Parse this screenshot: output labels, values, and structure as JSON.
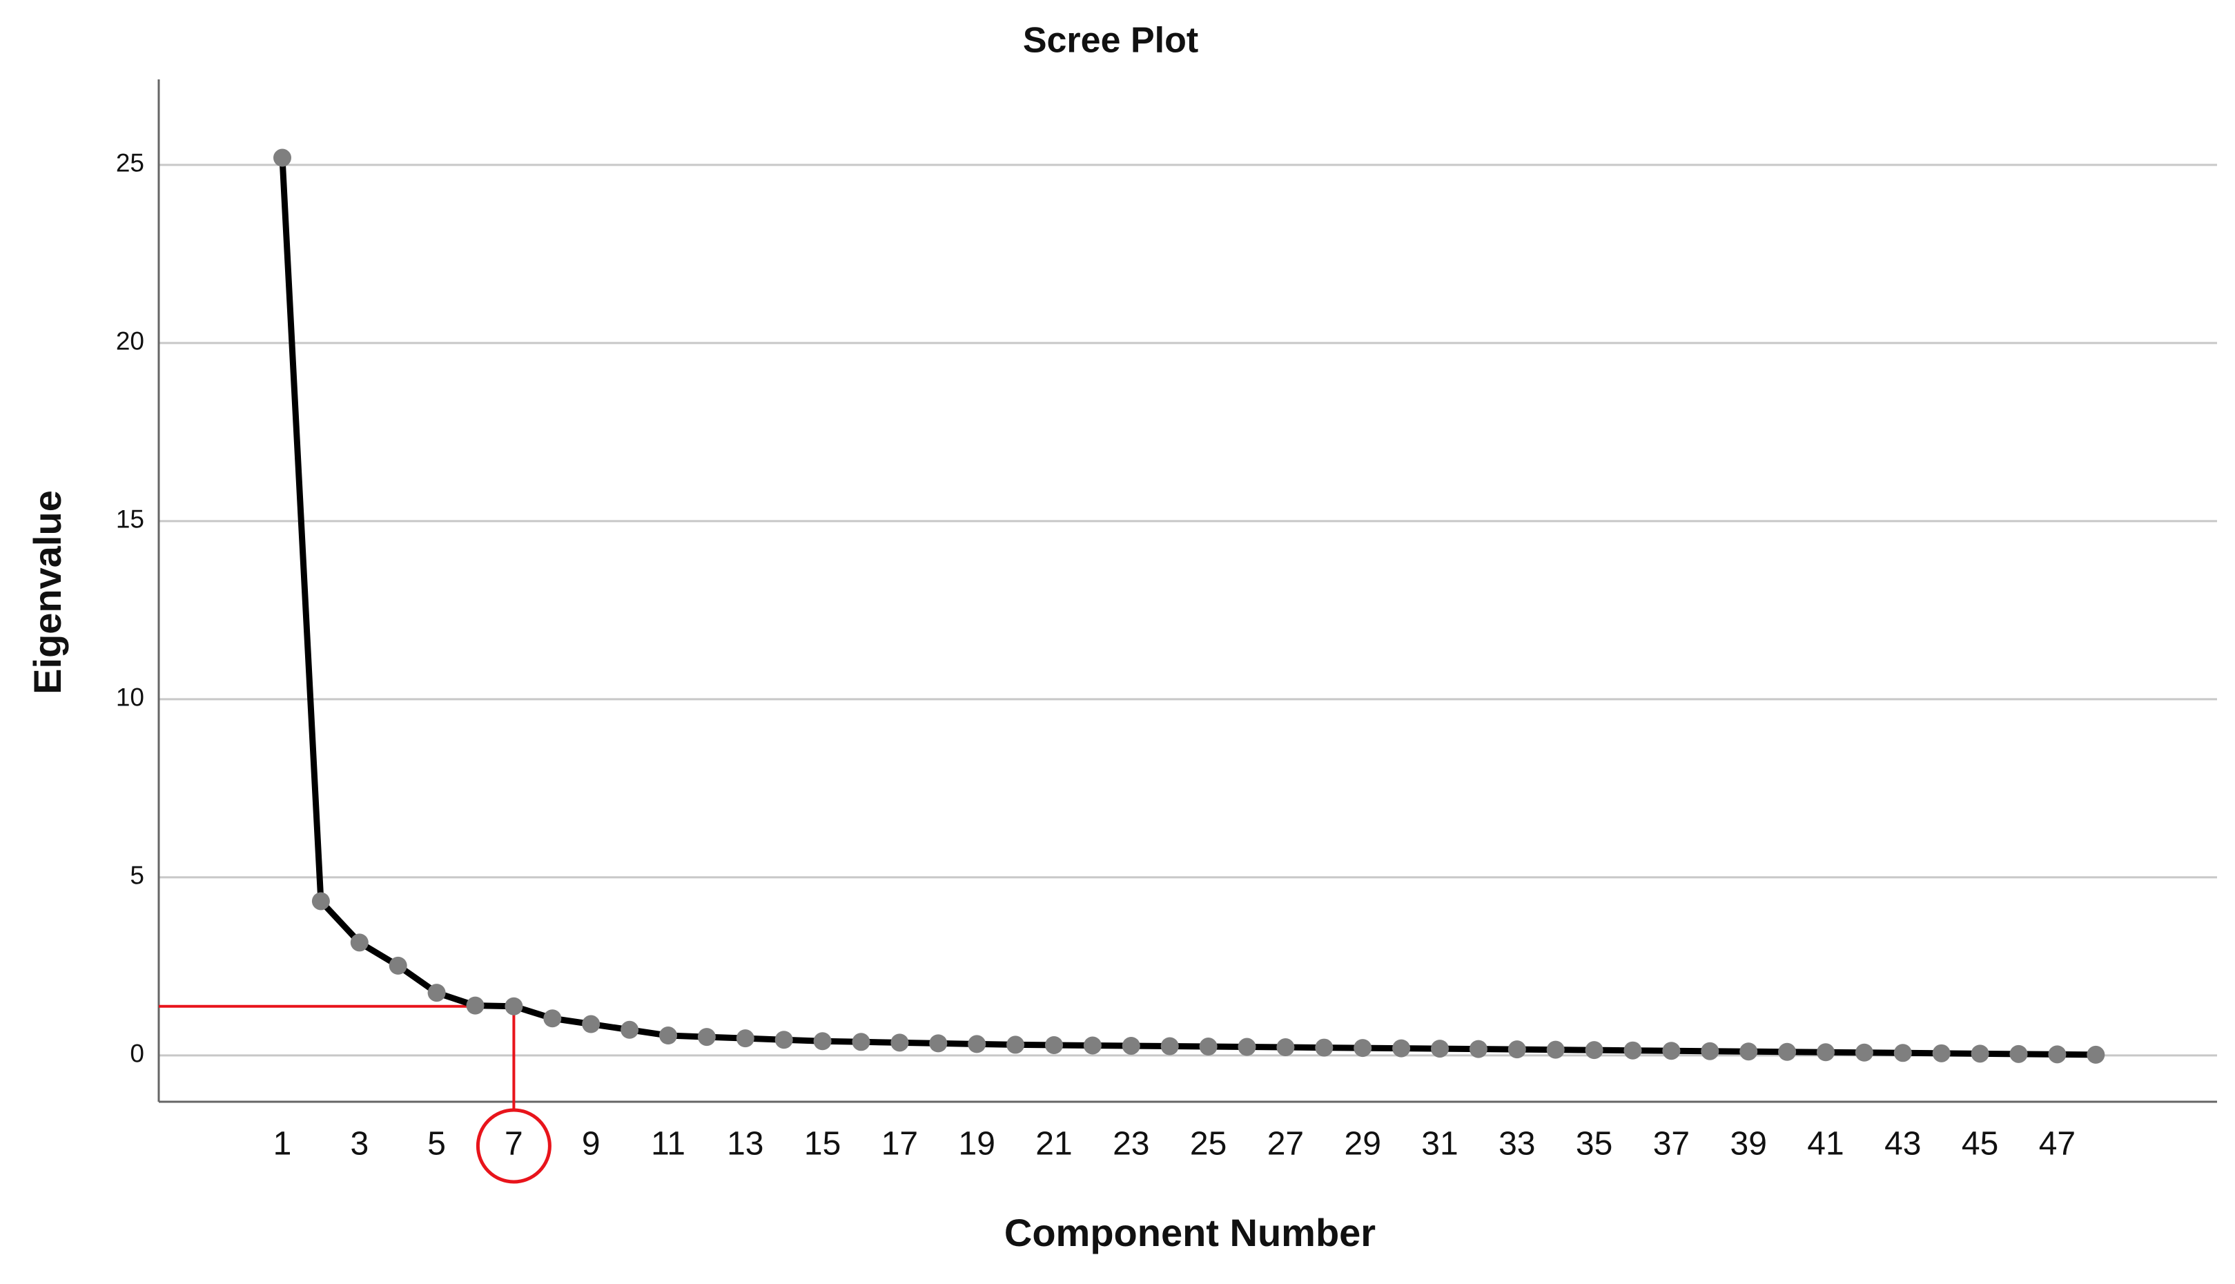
{
  "chart_data": {
    "type": "line",
    "title": "Scree Plot",
    "x_label": "Component Number",
    "y_label": "Eigenvalue",
    "categories": [
      1,
      null,
      3,
      null,
      5,
      null,
      7,
      null,
      9,
      null,
      11,
      null,
      13,
      null,
      15,
      null,
      17,
      null,
      19,
      null,
      21,
      null,
      23,
      null,
      25,
      null,
      27,
      null,
      29,
      null,
      31,
      null,
      33,
      null,
      35,
      null,
      37,
      null,
      39,
      null,
      41,
      null,
      43,
      null,
      45,
      null,
      47,
      null
    ],
    "values": [
      25.2,
      4.33,
      3.17,
      2.52,
      1.76,
      1.4,
      1.38,
      1.04,
      0.88,
      0.72,
      0.56,
      0.52,
      0.48,
      0.44,
      0.4,
      0.38,
      0.36,
      0.34,
      0.32,
      0.3,
      0.29,
      0.28,
      0.27,
      0.26,
      0.25,
      0.24,
      0.23,
      0.22,
      0.21,
      0.2,
      0.19,
      0.18,
      0.17,
      0.16,
      0.15,
      0.14,
      0.13,
      0.12,
      0.11,
      0.1,
      0.09,
      0.08,
      0.07,
      0.06,
      0.05,
      0.04,
      0.03,
      0.02
    ],
    "color": "#000000",
    "marker_color": "#7f7f7f",
    "highlight_color": "#e8141b",
    "highlight_index": 6,
    "ylim": [
      -1.3,
      27.4
    ],
    "yticks": [
      0,
      5,
      10,
      15,
      20,
      25
    ],
    "grid": true
  }
}
